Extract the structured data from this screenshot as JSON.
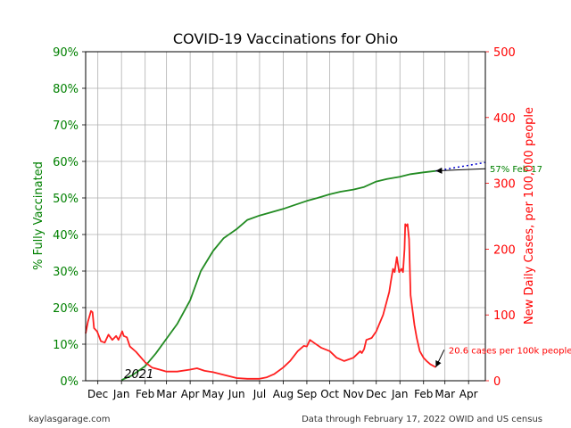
{
  "chart_data": {
    "type": "line",
    "title": "COVID-19 Vaccinations for Ohio",
    "x_axis": {
      "start": "2020-11-15",
      "end": "2022-04-23",
      "ticks": [
        {
          "date": "2020-12-01",
          "label": "Dec"
        },
        {
          "date": "2021-01-01",
          "label": "Jan"
        },
        {
          "date": "2021-02-01",
          "label": "Feb"
        },
        {
          "date": "2021-03-01",
          "label": "Mar"
        },
        {
          "date": "2021-04-01",
          "label": "Apr"
        },
        {
          "date": "2021-05-01",
          "label": "May"
        },
        {
          "date": "2021-06-01",
          "label": "Jun"
        },
        {
          "date": "2021-07-01",
          "label": "Jul"
        },
        {
          "date": "2021-08-01",
          "label": "Aug"
        },
        {
          "date": "2021-09-01",
          "label": "Sep"
        },
        {
          "date": "2021-10-01",
          "label": "Oct"
        },
        {
          "date": "2021-11-01",
          "label": "Nov"
        },
        {
          "date": "2021-12-01",
          "label": "Dec"
        },
        {
          "date": "2022-01-01",
          "label": "Jan"
        },
        {
          "date": "2022-02-01",
          "label": "Feb"
        },
        {
          "date": "2022-03-01",
          "label": "Mar"
        },
        {
          "date": "2022-04-01",
          "label": "Apr"
        }
      ],
      "year_label": {
        "text": "2021",
        "date": "2021-01-01"
      }
    },
    "y_left": {
      "label": "% Fully Vaccinated",
      "range": [
        0,
        90
      ],
      "ticks": [
        0,
        10,
        20,
        30,
        40,
        50,
        60,
        70,
        80,
        90
      ],
      "tick_suffix": "%",
      "color": "#008000"
    },
    "y_right": {
      "label": "New Daily Cases, per 100,000 people",
      "range": [
        0,
        500
      ],
      "ticks": [
        0,
        100,
        200,
        300,
        400,
        500
      ],
      "color": "#ff0000"
    },
    "grid": true,
    "series": [
      {
        "axis": "left",
        "color": "#228b22",
        "points": [
          [
            "2021-01-01",
            0.2
          ],
          [
            "2021-01-15",
            1.5
          ],
          [
            "2021-02-01",
            4.0
          ],
          [
            "2021-02-15",
            7.5
          ],
          [
            "2021-03-01",
            11.5
          ],
          [
            "2021-03-15",
            15.5
          ],
          [
            "2021-04-01",
            22.0
          ],
          [
            "2021-04-15",
            30.0
          ],
          [
            "2021-05-01",
            35.5
          ],
          [
            "2021-05-15",
            39.0
          ],
          [
            "2021-06-01",
            41.5
          ],
          [
            "2021-06-15",
            44.0
          ],
          [
            "2021-07-01",
            45.2
          ],
          [
            "2021-07-15",
            46.0
          ],
          [
            "2021-08-01",
            47.0
          ],
          [
            "2021-08-15",
            48.0
          ],
          [
            "2021-09-01",
            49.2
          ],
          [
            "2021-09-15",
            50.0
          ],
          [
            "2021-10-01",
            51.0
          ],
          [
            "2021-10-15",
            51.7
          ],
          [
            "2021-11-01",
            52.3
          ],
          [
            "2021-11-15",
            53.0
          ],
          [
            "2021-12-01",
            54.5
          ],
          [
            "2021-12-15",
            55.2
          ],
          [
            "2022-01-01",
            55.8
          ],
          [
            "2022-01-15",
            56.5
          ],
          [
            "2022-02-01",
            57.0
          ],
          [
            "2022-02-17",
            57.4
          ]
        ]
      },
      {
        "axis": "left",
        "color": "#0000cd",
        "dashed": true,
        "points": [
          [
            "2022-02-17",
            57.4
          ],
          [
            "2022-04-23",
            59.7
          ]
        ]
      },
      {
        "axis": "right",
        "color": "#ff2020",
        "points": [
          [
            "2020-11-15",
            72
          ],
          [
            "2020-11-18",
            90
          ],
          [
            "2020-11-22",
            106
          ],
          [
            "2020-11-24",
            104
          ],
          [
            "2020-11-26",
            80
          ],
          [
            "2020-11-30",
            75
          ],
          [
            "2020-12-05",
            60
          ],
          [
            "2020-12-10",
            58
          ],
          [
            "2020-12-15",
            70
          ],
          [
            "2020-12-20",
            62
          ],
          [
            "2020-12-25",
            68
          ],
          [
            "2020-12-28",
            62
          ],
          [
            "2021-01-02",
            75
          ],
          [
            "2021-01-04",
            68
          ],
          [
            "2021-01-08",
            66
          ],
          [
            "2021-01-12",
            52
          ],
          [
            "2021-01-20",
            44
          ],
          [
            "2021-02-01",
            28
          ],
          [
            "2021-02-10",
            20
          ],
          [
            "2021-02-20",
            17
          ],
          [
            "2021-03-01",
            14
          ],
          [
            "2021-03-15",
            14
          ],
          [
            "2021-04-01",
            17
          ],
          [
            "2021-04-10",
            19
          ],
          [
            "2021-04-20",
            15
          ],
          [
            "2021-05-01",
            13
          ],
          [
            "2021-05-15",
            9
          ],
          [
            "2021-06-01",
            4
          ],
          [
            "2021-06-15",
            3
          ],
          [
            "2021-07-01",
            3
          ],
          [
            "2021-07-10",
            5
          ],
          [
            "2021-07-20",
            10
          ],
          [
            "2021-08-01",
            20
          ],
          [
            "2021-08-10",
            30
          ],
          [
            "2021-08-20",
            45
          ],
          [
            "2021-08-28",
            53
          ],
          [
            "2021-09-01",
            52
          ],
          [
            "2021-09-05",
            62
          ],
          [
            "2021-09-10",
            58
          ],
          [
            "2021-09-20",
            50
          ],
          [
            "2021-10-01",
            45
          ],
          [
            "2021-10-10",
            35
          ],
          [
            "2021-10-20",
            30
          ],
          [
            "2021-11-01",
            35
          ],
          [
            "2021-11-10",
            45
          ],
          [
            "2021-11-12",
            42
          ],
          [
            "2021-11-15",
            48
          ],
          [
            "2021-11-18",
            62
          ],
          [
            "2021-11-25",
            65
          ],
          [
            "2021-12-01",
            75
          ],
          [
            "2021-12-10",
            100
          ],
          [
            "2021-12-18",
            135
          ],
          [
            "2021-12-20",
            150
          ],
          [
            "2021-12-23",
            170
          ],
          [
            "2021-12-25",
            165
          ],
          [
            "2021-12-28",
            188
          ],
          [
            "2021-12-31",
            165
          ],
          [
            "2022-01-03",
            170
          ],
          [
            "2022-01-05",
            165
          ],
          [
            "2022-01-07",
            200
          ],
          [
            "2022-01-08",
            238
          ],
          [
            "2022-01-10",
            235
          ],
          [
            "2022-01-11",
            238
          ],
          [
            "2022-01-13",
            215
          ],
          [
            "2022-01-15",
            130
          ],
          [
            "2022-01-20",
            85
          ],
          [
            "2022-01-23",
            65
          ],
          [
            "2022-01-27",
            45
          ],
          [
            "2022-02-01",
            35
          ],
          [
            "2022-02-05",
            30
          ],
          [
            "2022-02-10",
            25
          ],
          [
            "2022-02-17",
            20.6
          ]
        ]
      }
    ],
    "annotations": [
      {
        "text": "57% Feb 17",
        "color": "#008000",
        "axis": "left",
        "point": [
          "2022-02-17",
          57.4
        ],
        "text_at": [
          "2022-04-23",
          58
        ]
      },
      {
        "text": "20.6 cases per 100k people",
        "color": "#ff0000",
        "axis": "right",
        "point": [
          "2022-02-17",
          20.6
        ],
        "text_at": [
          "2022-02-28",
          47
        ]
      }
    ]
  },
  "footer": {
    "left": "kaylasgarage.com",
    "right": "Data through February 17, 2022 OWID and US census"
  }
}
